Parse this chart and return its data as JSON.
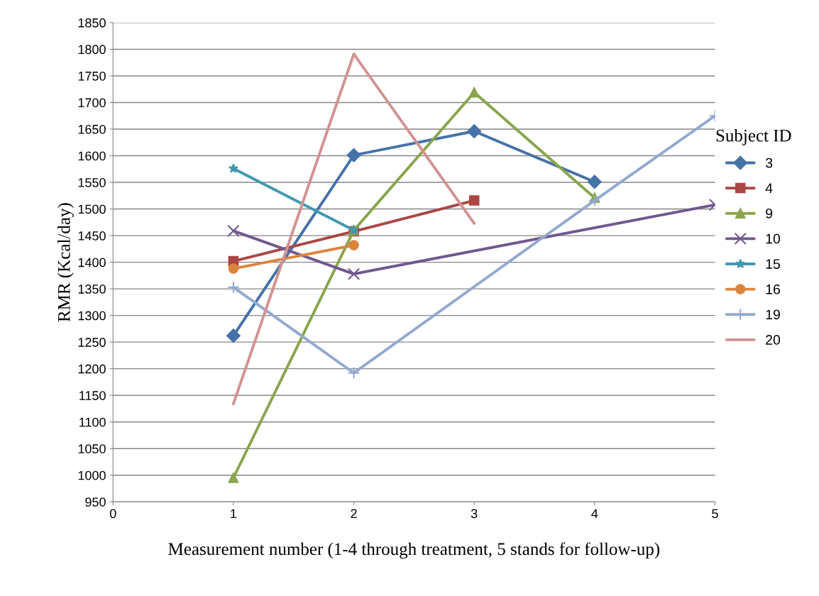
{
  "chart_data": {
    "type": "line",
    "xlabel": "Measurement number (1-4 through treatment, 5 stands for follow-up)",
    "ylabel": "RMR (Kcal/day)",
    "legend_title": "Subject ID",
    "legend": "right",
    "grid": "y",
    "xlim": [
      0,
      5
    ],
    "xticks": [
      0,
      1,
      2,
      3,
      4,
      5
    ],
    "ylim": [
      950,
      1850
    ],
    "yticks": [
      950,
      1000,
      1050,
      1100,
      1150,
      1200,
      1250,
      1300,
      1350,
      1400,
      1450,
      1500,
      1550,
      1600,
      1650,
      1700,
      1750,
      1800,
      1850
    ],
    "series": [
      {
        "name": "3",
        "color": "#4572a7",
        "marker": "diamond",
        "x": [
          1,
          2,
          3,
          4
        ],
        "values": [
          1262,
          1601,
          1646,
          1551
        ]
      },
      {
        "name": "4",
        "color": "#aa4643",
        "marker": "square",
        "x": [
          1,
          2,
          3
        ],
        "values": [
          1402,
          1458,
          1516
        ]
      },
      {
        "name": "9",
        "color": "#89a54e",
        "marker": "triangle",
        "x": [
          1,
          2,
          3,
          4
        ],
        "values": [
          995,
          1460,
          1719,
          1521
        ]
      },
      {
        "name": "10",
        "color": "#71588f",
        "marker": "cross",
        "x": [
          1,
          2,
          5
        ],
        "values": [
          1459,
          1378,
          1508
        ]
      },
      {
        "name": "15",
        "color": "#4198af",
        "marker": "star",
        "x": [
          1,
          2
        ],
        "values": [
          1576,
          1460
        ]
      },
      {
        "name": "16",
        "color": "#db843d",
        "marker": "circle",
        "x": [
          1,
          2
        ],
        "values": [
          1388,
          1432
        ]
      },
      {
        "name": "19",
        "color": "#93a9cf",
        "marker": "plus",
        "x": [
          1,
          2,
          4,
          5
        ],
        "values": [
          1353,
          1192,
          1516,
          1675
        ]
      },
      {
        "name": "20",
        "color": "#d09392",
        "marker": "none",
        "x": [
          1,
          2,
          3
        ],
        "values": [
          1134,
          1791,
          1473
        ]
      }
    ]
  }
}
